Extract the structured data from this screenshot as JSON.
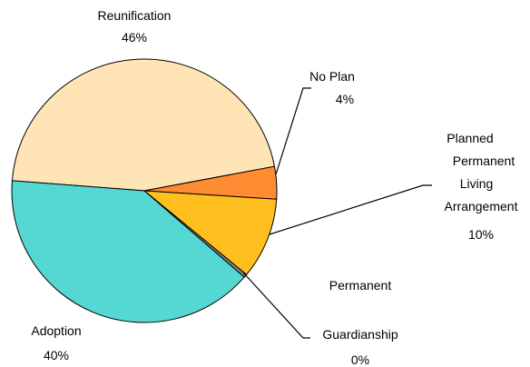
{
  "chart_data": {
    "type": "pie",
    "title": "",
    "slices": [
      {
        "name": "Reunification",
        "value": 46,
        "label_value": "46%",
        "color": "#FFE4B5"
      },
      {
        "name": "No Plan",
        "value": 4,
        "label_value": "4%",
        "color": "#FF8C33"
      },
      {
        "name": "Planned Permanent Living Arrangement",
        "value": 10,
        "label_value": "10%",
        "color": "#FFC01F"
      },
      {
        "name": "Permanent Guardianship",
        "value": 0.4,
        "label_value": "0%",
        "color": "#8B8B8B"
      },
      {
        "name": "Adoption",
        "value": 40,
        "label_value": "40%",
        "color": "#55D8D4"
      }
    ]
  }
}
